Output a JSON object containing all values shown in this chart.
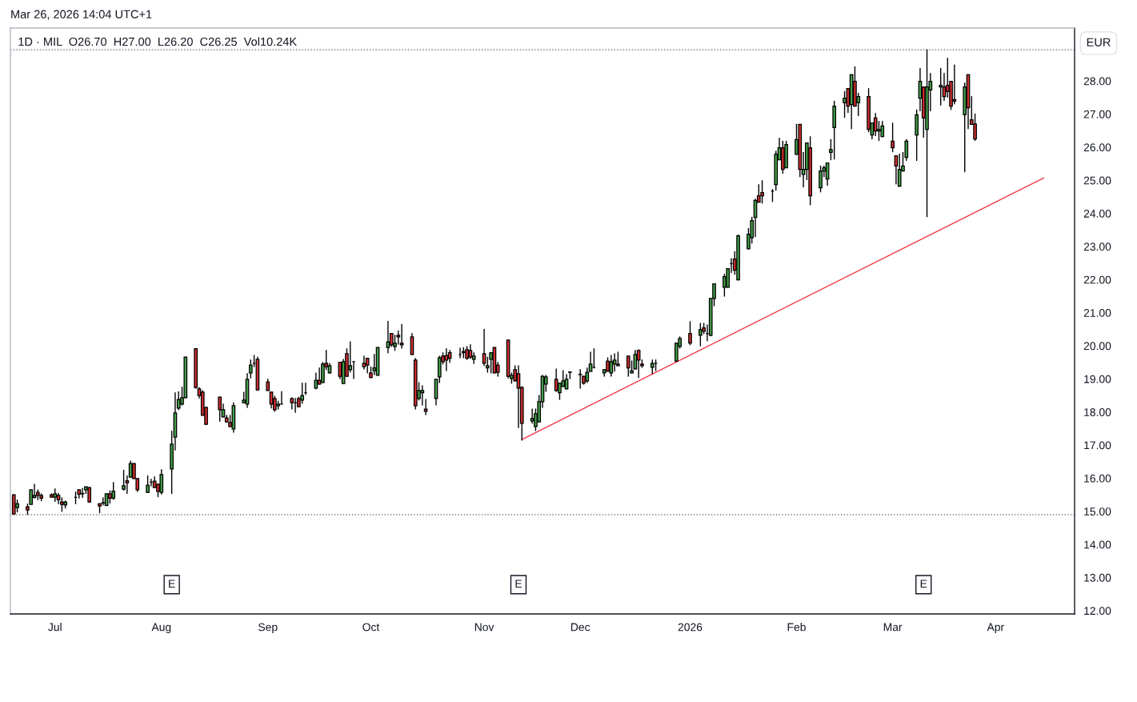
{
  "chart_data": {
    "type": "candlestick",
    "title": "Mar 26, 2026 14:04 UTC+1",
    "subtitle": "1D · MIL  O26.70  H27.00  L26.20  C26.25  Vol10.24K",
    "annotations": [
      "EUR",
      {
        "text": "E",
        "x": "2025-08-04"
      },
      {
        "text": "E",
        "x": "2025-11-13"
      },
      {
        "text": "E",
        "x": "2026-03-11"
      }
    ],
    "x": [
      "2025-06-19",
      "2025-06-20",
      "2025-06-23",
      "2025-06-24",
      "2025-06-25",
      "2025-06-26",
      "2025-06-27",
      "2025-06-30",
      "2025-07-01",
      "2025-07-02",
      "2025-07-03",
      "2025-07-04",
      "2025-07-07",
      "2025-07-08",
      "2025-07-09",
      "2025-07-10",
      "2025-07-11",
      "2025-07-14",
      "2025-07-15",
      "2025-07-16",
      "2025-07-17",
      "2025-07-18",
      "2025-07-21",
      "2025-07-22",
      "2025-07-23",
      "2025-07-24",
      "2025-07-25",
      "2025-07-28",
      "2025-07-29",
      "2025-07-30",
      "2025-07-31",
      "2025-08-01",
      "2025-08-04",
      "2025-08-05",
      "2025-08-06",
      "2025-08-07",
      "2025-08-08",
      "2025-08-11",
      "2025-08-12",
      "2025-08-13",
      "2025-08-14",
      "2025-08-18",
      "2025-08-19",
      "2025-08-20",
      "2025-08-21",
      "2025-08-22",
      "2025-08-25",
      "2025-08-26",
      "2025-08-27",
      "2025-08-28",
      "2025-08-29",
      "2025-09-01",
      "2025-09-02",
      "2025-09-03",
      "2025-09-04",
      "2025-09-05",
      "2025-09-08",
      "2025-09-09",
      "2025-09-10",
      "2025-09-11",
      "2025-09-12",
      "2025-09-15",
      "2025-09-16",
      "2025-09-17",
      "2025-09-18",
      "2025-09-19",
      "2025-09-22",
      "2025-09-23",
      "2025-09-24",
      "2025-09-25",
      "2025-09-26",
      "2025-09-29",
      "2025-09-30",
      "2025-10-01",
      "2025-10-02",
      "2025-10-03",
      "2025-10-06",
      "2025-10-07",
      "2025-10-08",
      "2025-10-09",
      "2025-10-10",
      "2025-10-13",
      "2025-10-14",
      "2025-10-15",
      "2025-10-16",
      "2025-10-17",
      "2025-10-20",
      "2025-10-21",
      "2025-10-22",
      "2025-10-23",
      "2025-10-24",
      "2025-10-27",
      "2025-10-28",
      "2025-10-29",
      "2025-10-30",
      "2025-10-31",
      "2025-11-03",
      "2025-11-04",
      "2025-11-05",
      "2025-11-06",
      "2025-11-07",
      "2025-11-10",
      "2025-11-11",
      "2025-11-12",
      "2025-11-13",
      "2025-11-14",
      "2025-11-17",
      "2025-11-18",
      "2025-11-19",
      "2025-11-20",
      "2025-11-21",
      "2025-11-24",
      "2025-11-25",
      "2025-11-26",
      "2025-11-27",
      "2025-11-28",
      "2025-12-01",
      "2025-12-02",
      "2025-12-03",
      "2025-12-04",
      "2025-12-05",
      "2025-12-08",
      "2025-12-09",
      "2025-12-10",
      "2025-12-11",
      "2025-12-12",
      "2025-12-15",
      "2025-12-16",
      "2025-12-17",
      "2025-12-18",
      "2025-12-19",
      "2025-12-22",
      "2025-12-23",
      "2025-12-29",
      "2025-12-30",
      "2026-01-02",
      "2026-01-05",
      "2026-01-06",
      "2026-01-07",
      "2026-01-08",
      "2026-01-09",
      "2026-01-12",
      "2026-01-13",
      "2026-01-14",
      "2026-01-15",
      "2026-01-16",
      "2026-01-19",
      "2026-01-20",
      "2026-01-21",
      "2026-01-22",
      "2026-01-23",
      "2026-01-26",
      "2026-01-27",
      "2026-01-28",
      "2026-01-29",
      "2026-01-30",
      "2026-02-02",
      "2026-02-03",
      "2026-02-04",
      "2026-02-05",
      "2026-02-06",
      "2026-02-09",
      "2026-02-10",
      "2026-02-11",
      "2026-02-12",
      "2026-02-13",
      "2026-02-16",
      "2026-02-17",
      "2026-02-18",
      "2026-02-19",
      "2026-02-20",
      "2026-02-23",
      "2026-02-24",
      "2026-02-25",
      "2026-02-26",
      "2026-02-27",
      "2026-03-02",
      "2026-03-03",
      "2026-03-04",
      "2026-03-05",
      "2026-03-06",
      "2026-03-09",
      "2026-03-10",
      "2026-03-11",
      "2026-03-12",
      "2026-03-13",
      "2026-03-16",
      "2026-03-17",
      "2026-03-18",
      "2026-03-19",
      "2026-03-20",
      "2026-03-23",
      "2026-03-24",
      "2026-03-25",
      "2026-03-26"
    ],
    "ohlc": [
      [
        15.5,
        15.5,
        14.92,
        14.92
      ],
      [
        15.11,
        15.34,
        14.98,
        15.23
      ],
      [
        15.14,
        15.22,
        14.91,
        15.04
      ],
      [
        15.21,
        15.65,
        15.21,
        15.65
      ],
      [
        15.42,
        15.82,
        15.4,
        15.48
      ],
      [
        15.57,
        15.65,
        15.35,
        15.48
      ],
      [
        15.48,
        15.53,
        15.32,
        15.4
      ],
      [
        15.5,
        15.53,
        15.43,
        15.43
      ],
      [
        15.43,
        15.68,
        15.3,
        15.53
      ],
      [
        15.48,
        15.54,
        15.23,
        15.35
      ],
      [
        15.28,
        15.41,
        15.0,
        15.21
      ],
      [
        15.19,
        15.31,
        15.1,
        15.28
      ],
      [
        15.42,
        15.58,
        15.23,
        15.42
      ],
      [
        15.65,
        15.65,
        15.4,
        15.52
      ],
      [
        15.53,
        15.69,
        15.42,
        15.54
      ],
      [
        15.65,
        15.74,
        15.54,
        15.74
      ],
      [
        15.72,
        15.72,
        15.28,
        15.28
      ],
      [
        15.23,
        15.23,
        14.96,
        15.16
      ],
      [
        15.25,
        15.41,
        15.19,
        15.26
      ],
      [
        15.18,
        15.53,
        15.17,
        15.53
      ],
      [
        15.53,
        15.62,
        15.25,
        15.4
      ],
      [
        15.4,
        15.87,
        15.36,
        15.61
      ],
      [
        15.67,
        16.24,
        15.64,
        15.77
      ],
      [
        15.92,
        16.07,
        15.54,
        15.86
      ],
      [
        16.03,
        16.52,
        16.03,
        16.44
      ],
      [
        16.44,
        16.44,
        15.99,
        15.99
      ],
      [
        15.99,
        15.99,
        15.6,
        15.65
      ],
      [
        15.57,
        16.07,
        15.57,
        15.79
      ],
      [
        15.88,
        15.97,
        15.77,
        15.88
      ],
      [
        15.91,
        16.04,
        15.72,
        15.72
      ],
      [
        15.82,
        15.82,
        15.44,
        15.6
      ],
      [
        15.57,
        16.26,
        15.52,
        16.11
      ],
      [
        16.28,
        17.42,
        15.54,
        17.03
      ],
      [
        17.24,
        18.58,
        16.85,
        17.97
      ],
      [
        18.12,
        18.61,
        18.07,
        18.38
      ],
      [
        18.24,
        18.75,
        18.21,
        18.43
      ],
      [
        18.43,
        19.66,
        18.43,
        19.66
      ],
      [
        19.91,
        19.91,
        18.72,
        18.74
      ],
      [
        18.7,
        18.74,
        18.42,
        18.5
      ],
      [
        18.6,
        18.65,
        17.9,
        17.9
      ],
      [
        18.14,
        18.14,
        17.63,
        17.63
      ],
      [
        18.45,
        18.45,
        17.72,
        18.07
      ],
      [
        17.85,
        18.24,
        17.85,
        18.07
      ],
      [
        17.82,
        17.9,
        17.7,
        17.7
      ],
      [
        17.68,
        17.9,
        17.56,
        17.56
      ],
      [
        17.49,
        18.28,
        17.39,
        18.19
      ],
      [
        18.28,
        18.6,
        18.28,
        18.36
      ],
      [
        18.24,
        19.16,
        18.14,
        18.99
      ],
      [
        19.18,
        19.57,
        19.03,
        19.42
      ],
      [
        19.47,
        19.71,
        19.37,
        19.47
      ],
      [
        19.59,
        19.66,
        18.67,
        18.67
      ],
      [
        18.91,
        18.99,
        18.65,
        18.65
      ],
      [
        18.6,
        18.6,
        18.12,
        18.24
      ],
      [
        18.41,
        18.48,
        18.02,
        18.07
      ],
      [
        18.19,
        18.33,
        18.09,
        18.24
      ],
      [
        18.24,
        18.62,
        18.24,
        18.24
      ],
      [
        18.41,
        18.43,
        18.09,
        18.28
      ],
      [
        18.28,
        18.41,
        17.99,
        18.28
      ],
      [
        18.41,
        18.45,
        18.16,
        18.16
      ],
      [
        18.36,
        18.87,
        18.26,
        18.5
      ],
      [
        18.58,
        18.87,
        18.53,
        18.58
      ],
      [
        18.72,
        19.18,
        18.7,
        18.96
      ],
      [
        18.96,
        19.33,
        18.84,
        18.84
      ],
      [
        18.89,
        19.5,
        18.89,
        19.45
      ],
      [
        19.47,
        19.86,
        19.28,
        19.37
      ],
      [
        19.18,
        19.47,
        19.18,
        19.4
      ],
      [
        19.5,
        19.5,
        19.01,
        19.08
      ],
      [
        18.86,
        19.59,
        18.86,
        19.52
      ],
      [
        19.76,
        19.91,
        19.08,
        19.08
      ],
      [
        19.28,
        20.12,
        19.21,
        19.4
      ],
      [
        19.52,
        19.52,
        19.01,
        19.52
      ],
      [
        19.47,
        19.69,
        19.3,
        19.37
      ],
      [
        19.62,
        19.62,
        19.18,
        19.42
      ],
      [
        19.18,
        19.37,
        19.04,
        19.04
      ],
      [
        19.25,
        19.74,
        19.13,
        19.33
      ],
      [
        19.11,
        19.95,
        19.11,
        19.95
      ],
      [
        19.95,
        20.74,
        19.79,
        20.12
      ],
      [
        20.37,
        20.37,
        19.98,
        20.03
      ],
      [
        19.98,
        20.32,
        19.86,
        20.08
      ],
      [
        20.32,
        20.45,
        20.05,
        20.27
      ],
      [
        20.08,
        20.64,
        19.93,
        20.03
      ],
      [
        20.27,
        20.37,
        19.74,
        19.74
      ],
      [
        19.57,
        19.62,
        18.09,
        18.19
      ],
      [
        18.41,
        18.89,
        18.36,
        18.65
      ],
      [
        18.58,
        18.79,
        18.21,
        18.65
      ],
      [
        18.09,
        18.38,
        17.92,
        18.02
      ],
      [
        18.41,
        18.99,
        18.21,
        18.99
      ],
      [
        19.06,
        19.69,
        18.89,
        19.64
      ],
      [
        19.69,
        19.79,
        19.45,
        19.52
      ],
      [
        19.71,
        19.91,
        19.25,
        19.57
      ],
      [
        19.79,
        19.86,
        19.5,
        19.62
      ],
      [
        19.74,
        19.93,
        19.64,
        19.74
      ],
      [
        19.83,
        19.95,
        19.64,
        19.79
      ],
      [
        19.88,
        19.98,
        19.59,
        19.62
      ],
      [
        19.86,
        20.03,
        19.62,
        19.66
      ],
      [
        19.59,
        19.79,
        19.47,
        19.69
      ],
      [
        19.76,
        20.5,
        19.4,
        19.47
      ],
      [
        19.33,
        19.66,
        19.2,
        19.4
      ],
      [
        19.59,
        19.79,
        19.18,
        19.79
      ],
      [
        19.95,
        19.95,
        19.18,
        19.18
      ],
      [
        19.42,
        19.5,
        19.08,
        19.2
      ],
      [
        20.17,
        20.17,
        19.03,
        19.08
      ],
      [
        19.01,
        19.18,
        18.87,
        19.11
      ],
      [
        19.28,
        19.4,
        18.94,
        18.94
      ],
      [
        19.16,
        19.4,
        17.53,
        18.72
      ],
      [
        18.74,
        18.77,
        17.15,
        17.66
      ],
      [
        17.73,
        18.09,
        17.66,
        17.8
      ],
      [
        17.56,
        18.09,
        17.44,
        17.95
      ],
      [
        17.7,
        18.5,
        17.7,
        18.31
      ],
      [
        18.31,
        19.11,
        18.14,
        19.08
      ],
      [
        18.84,
        19.11,
        18.62,
        19.06
      ],
      [
        18.99,
        19.3,
        18.62,
        18.65
      ],
      [
        18.58,
        18.87,
        18.38,
        18.87
      ],
      [
        18.77,
        19.25,
        18.77,
        18.94
      ],
      [
        18.7,
        19.13,
        18.7,
        18.99
      ],
      [
        19.2,
        19.21,
        19.01,
        19.21
      ],
      [
        19.13,
        19.28,
        18.72,
        19.14
      ],
      [
        19.08,
        19.08,
        18.84,
        18.87
      ],
      [
        18.94,
        19.33,
        18.89,
        19.2
      ],
      [
        19.23,
        19.81,
        19.23,
        19.45
      ],
      [
        19.35,
        19.91,
        19.33,
        19.35
      ],
      [
        19.18,
        19.28,
        19.08,
        19.28
      ],
      [
        19.54,
        19.64,
        19.23,
        19.23
      ],
      [
        19.18,
        19.71,
        19.08,
        19.52
      ],
      [
        19.45,
        19.76,
        19.23,
        19.57
      ],
      [
        19.4,
        19.81,
        19.4,
        19.45
      ],
      [
        19.69,
        19.69,
        19.08,
        19.33
      ],
      [
        19.18,
        19.54,
        19.18,
        19.25
      ],
      [
        19.3,
        19.86,
        19.3,
        19.74
      ],
      [
        19.86,
        19.88,
        19.04,
        19.57
      ],
      [
        19.45,
        19.57,
        19.35,
        19.4
      ],
      [
        19.35,
        19.57,
        19.16,
        19.47
      ],
      [
        19.47,
        19.57,
        19.25,
        19.47
      ],
      [
        19.54,
        20.08,
        19.52,
        20.08
      ],
      [
        19.98,
        20.27,
        19.93,
        20.22
      ],
      [
        20.37,
        20.73,
        20.03,
        20.08
      ],
      [
        20.32,
        20.68,
        20.0,
        20.49
      ],
      [
        20.54,
        20.68,
        20.37,
        20.44
      ],
      [
        20.37,
        20.63,
        20.15,
        20.37
      ],
      [
        20.32,
        21.43,
        20.3,
        21.43
      ],
      [
        21.43,
        21.87,
        21.21,
        21.87
      ],
      [
        21.77,
        22.16,
        21.5,
        22.09
      ],
      [
        21.77,
        22.33,
        21.77,
        22.33
      ],
      [
        22.48,
        22.63,
        22.21,
        22.48
      ],
      [
        22.62,
        22.84,
        22.16,
        22.28
      ],
      [
        21.99,
        23.35,
        21.99,
        23.32
      ],
      [
        22.93,
        23.54,
        22.93,
        23.37
      ],
      [
        23.27,
        23.88,
        23.1,
        23.78
      ],
      [
        23.88,
        24.43,
        23.3,
        24.39
      ],
      [
        24.53,
        24.87,
        24.34,
        24.34
      ],
      [
        24.63,
        24.99,
        24.31,
        24.53
      ],
      [
        24.67,
        24.72,
        24.36,
        24.67
      ],
      [
        24.87,
        25.88,
        24.7,
        25.79
      ],
      [
        25.62,
        26.27,
        25.62,
        25.98
      ],
      [
        25.98,
        26.18,
        25.21,
        25.33
      ],
      [
        25.38,
        26.18,
        25.38,
        26.08
      ],
      [
        25.79,
        26.69,
        25.77,
        26.23
      ],
      [
        26.69,
        26.69,
        25.11,
        25.33
      ],
      [
        25.18,
        25.84,
        24.8,
        25.33
      ],
      [
        25.33,
        26.13,
        25.02,
        26.13
      ],
      [
        25.98,
        26.32,
        24.26,
        24.53
      ],
      [
        24.77,
        25.43,
        24.65,
        25.28
      ],
      [
        25.28,
        25.43,
        25.11,
        25.38
      ],
      [
        25.04,
        25.52,
        24.85,
        25.52
      ],
      [
        25.84,
        26.23,
        25.62,
        25.93
      ],
      [
        26.59,
        27.39,
        25.64,
        27.24
      ],
      [
        27.34,
        27.68,
        26.9,
        27.48
      ],
      [
        27.77,
        27.77,
        27.05,
        27.24
      ],
      [
        27.29,
        28.19,
        26.56,
        28.19
      ],
      [
        27.99,
        28.43,
        27.24,
        27.24
      ],
      [
        27.34,
        27.63,
        26.95,
        27.53
      ],
      [
        27.53,
        27.77,
        26.47,
        26.54
      ],
      [
        26.37,
        26.73,
        26.25,
        26.73
      ],
      [
        26.88,
        27.02,
        26.35,
        26.49
      ],
      [
        26.49,
        26.78,
        26.2,
        26.54
      ],
      [
        26.32,
        26.78,
        26.32,
        26.64
      ],
      [
        26.18,
        26.73,
        25.86,
        25.98
      ],
      [
        25.74,
        25.74,
        24.89,
        25.43
      ],
      [
        24.82,
        25.79,
        24.82,
        25.33
      ],
      [
        25.28,
        25.84,
        25.28,
        25.43
      ],
      [
        25.69,
        26.23,
        25.6,
        26.18
      ],
      [
        26.37,
        27.12,
        25.6,
        26.98
      ],
      [
        27.48,
        28.38,
        27.1,
        27.99
      ],
      [
        27.82,
        27.82,
        26.3,
        26.88
      ],
      [
        26.54,
        28.94,
        23.9,
        27.82
      ],
      [
        27.73,
        28.23,
        27.1,
        27.99
      ],
      [
        27.82,
        28.38,
        27.27,
        27.87
      ],
      [
        27.82,
        28.23,
        27.41,
        27.53
      ],
      [
        27.87,
        28.69,
        27.51,
        27.68
      ],
      [
        27.99,
        27.99,
        27.14,
        27.24
      ],
      [
        27.44,
        28.48,
        27.31,
        27.39
      ],
      [
        26.98,
        27.94,
        25.26,
        27.82
      ],
      [
        28.19,
        28.19,
        26.56,
        27.19
      ],
      [
        26.83,
        27.53,
        26.69,
        26.69
      ],
      [
        26.7,
        27.0,
        26.2,
        26.25
      ]
    ],
    "series": [
      {
        "type": "line",
        "x": [
          "2025-11-14",
          "2026-04-15"
        ],
        "values": [
          17.17,
          25.07
        ],
        "color": "#f23645"
      }
    ],
    "ref_lines": [
      {
        "axis": "y",
        "value": 28.94,
        "color": "#787b86",
        "line_style": "dotted"
      },
      {
        "axis": "y",
        "value": 14.9,
        "color": "#787b86",
        "line_style": "dotted"
      }
    ],
    "xlim": [
      "2025-06-18",
      "2026-04-24"
    ],
    "xticks": [
      {
        "value": "2025-07-01",
        "label": "Jul"
      },
      {
        "value": "2025-08-01",
        "label": "Aug"
      },
      {
        "value": "2025-09-01",
        "label": "Sep"
      },
      {
        "value": "2025-10-01",
        "label": "Oct"
      },
      {
        "value": "2025-11-03",
        "label": "Nov"
      },
      {
        "value": "2025-12-01",
        "label": "Dec"
      },
      {
        "value": "2026-01-02",
        "label": "2026"
      },
      {
        "value": "2026-02-02",
        "label": "Feb"
      },
      {
        "value": "2026-03-02",
        "label": "Mar"
      },
      {
        "value": "2026-04-01",
        "label": "Apr"
      }
    ],
    "ylim": [
      11.9,
      29.6
    ],
    "yticks": [
      {
        "value": 12,
        "label": "12.00"
      },
      {
        "value": 13,
        "label": "13.00"
      },
      {
        "value": 14,
        "label": "14.00"
      },
      {
        "value": 15,
        "label": "15.00"
      },
      {
        "value": 16,
        "label": "16.00"
      },
      {
        "value": 17,
        "label": "17.00"
      },
      {
        "value": 18,
        "label": "18.00"
      },
      {
        "value": 19,
        "label": "19.00"
      },
      {
        "value": 20,
        "label": "20.00"
      },
      {
        "value": 21,
        "label": "21.00"
      },
      {
        "value": 22,
        "label": "22.00"
      },
      {
        "value": 23,
        "label": "23.00"
      },
      {
        "value": 24,
        "label": "24.00"
      },
      {
        "value": 25,
        "label": "25.00"
      },
      {
        "value": 26,
        "label": "26.00"
      },
      {
        "value": 27,
        "label": "27.00"
      },
      {
        "value": 28,
        "label": "28.00"
      }
    ],
    "grid": false,
    "legend": false
  }
}
